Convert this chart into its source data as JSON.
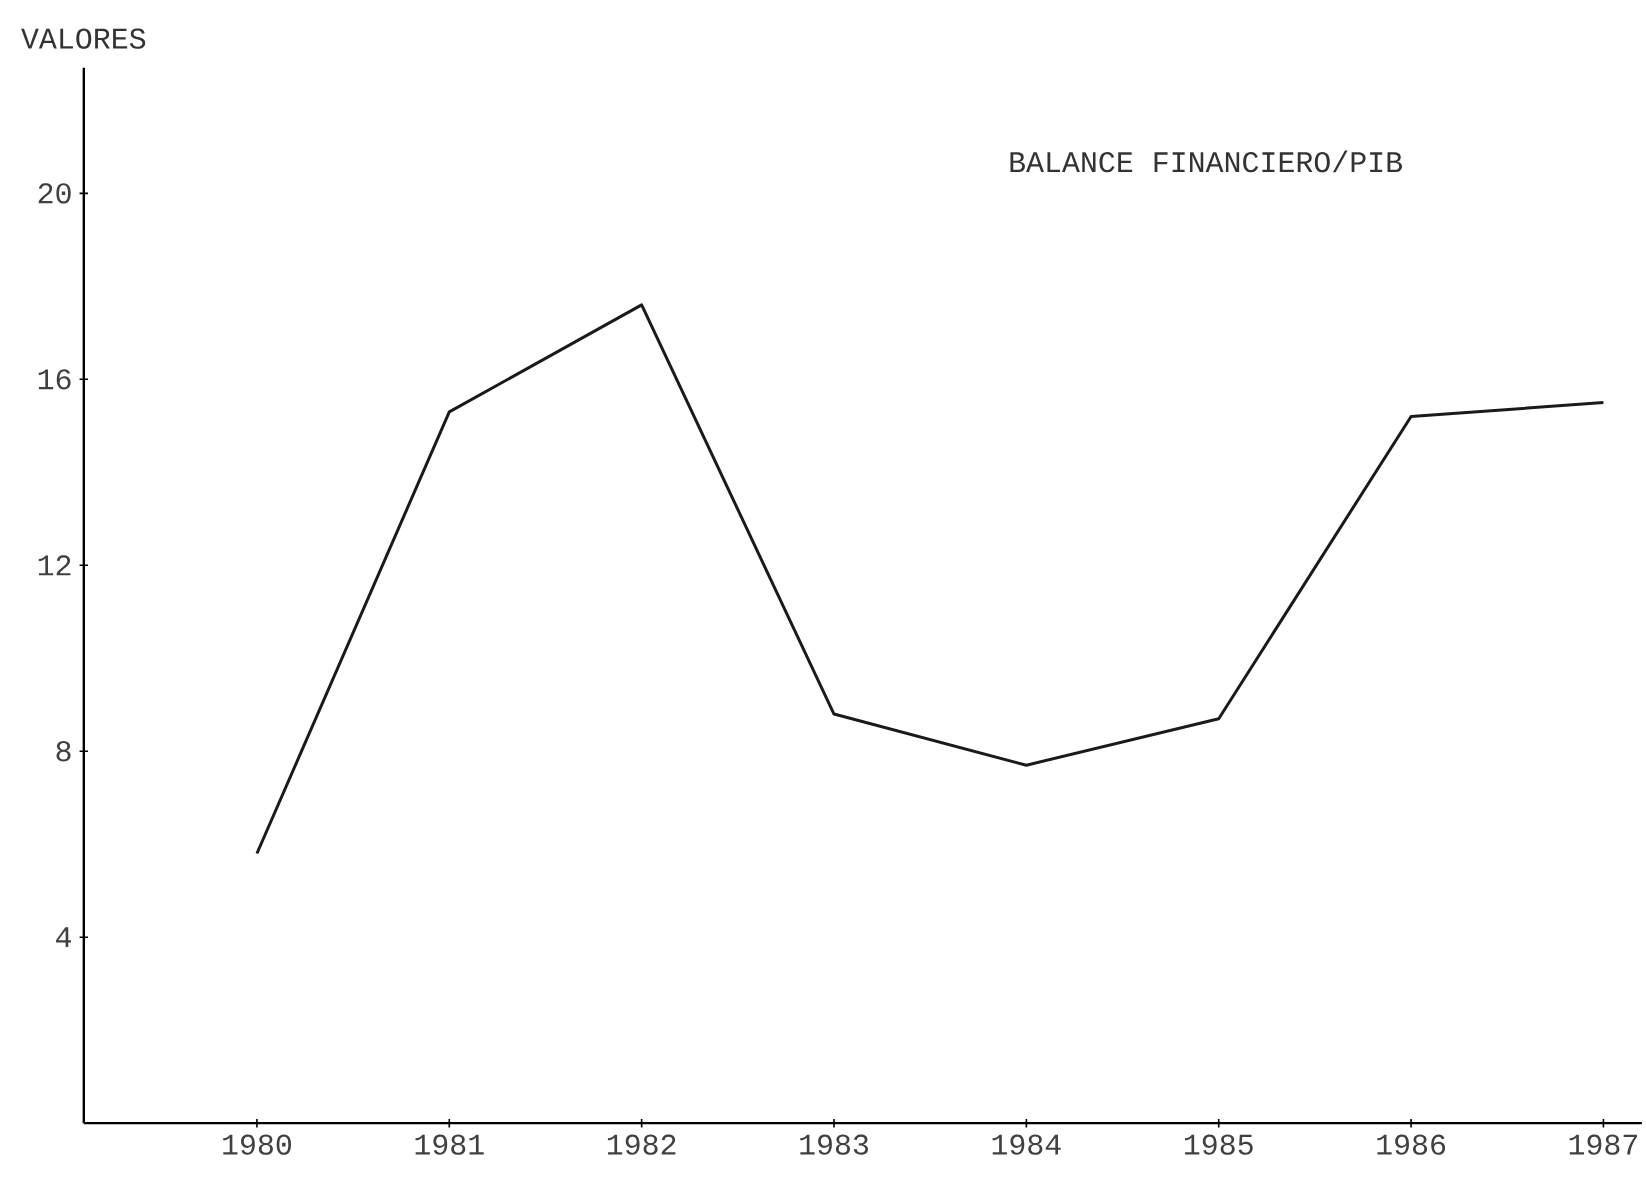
{
  "chart_data": {
    "type": "line",
    "title": "BALANCE FINANCIERO/PIB",
    "ylabel": "VALORES",
    "x": [
      1980,
      1981,
      1982,
      1983,
      1984,
      1985,
      1986,
      1987
    ],
    "values": [
      5.8,
      15.3,
      17.6,
      8.8,
      7.7,
      8.7,
      15.2,
      15.5
    ],
    "color": "#1a1a1a",
    "xlim": [
      1979.1,
      1987.2
    ],
    "ylim": [
      0,
      22.7
    ],
    "xticks": [
      1980,
      1981,
      1982,
      1983,
      1984,
      1985,
      1986,
      1987
    ],
    "yticks": [
      4,
      8,
      12,
      16,
      20
    ],
    "grid": false,
    "marker": "none",
    "line_style": "solid"
  }
}
